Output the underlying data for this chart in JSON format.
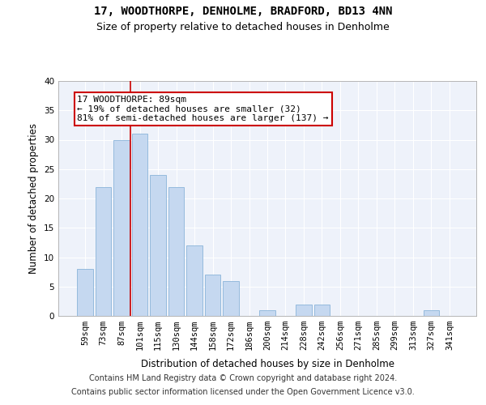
{
  "title": "17, WOODTHORPE, DENHOLME, BRADFORD, BD13 4NN",
  "subtitle": "Size of property relative to detached houses in Denholme",
  "xlabel": "Distribution of detached houses by size in Denholme",
  "ylabel": "Number of detached properties",
  "categories": [
    "59sqm",
    "73sqm",
    "87sqm",
    "101sqm",
    "115sqm",
    "130sqm",
    "144sqm",
    "158sqm",
    "172sqm",
    "186sqm",
    "200sqm",
    "214sqm",
    "228sqm",
    "242sqm",
    "256sqm",
    "271sqm",
    "285sqm",
    "299sqm",
    "313sqm",
    "327sqm",
    "341sqm"
  ],
  "values": [
    8,
    22,
    30,
    31,
    24,
    22,
    12,
    7,
    6,
    0,
    1,
    0,
    2,
    2,
    0,
    0,
    0,
    0,
    0,
    1,
    0
  ],
  "bar_color": "#c5d8f0",
  "bar_edge_color": "#8ab4d9",
  "vline_position": 2.5,
  "vline_color": "#cc0000",
  "annotation_text_line1": "17 WOODTHORPE: 89sqm",
  "annotation_text_line2": "← 19% of detached houses are smaller (32)",
  "annotation_text_line3": "81% of semi-detached houses are larger (137) →",
  "annotation_box_color": "#cc0000",
  "ylim": [
    0,
    40
  ],
  "yticks": [
    0,
    5,
    10,
    15,
    20,
    25,
    30,
    35,
    40
  ],
  "footer_line1": "Contains HM Land Registry data © Crown copyright and database right 2024.",
  "footer_line2": "Contains public sector information licensed under the Open Government Licence v3.0.",
  "background_color": "#eef2fa",
  "grid_color": "#ffffff",
  "title_fontsize": 10,
  "subtitle_fontsize": 9,
  "axis_label_fontsize": 8.5,
  "tick_fontsize": 7.5,
  "annotation_fontsize": 8,
  "footer_fontsize": 7
}
